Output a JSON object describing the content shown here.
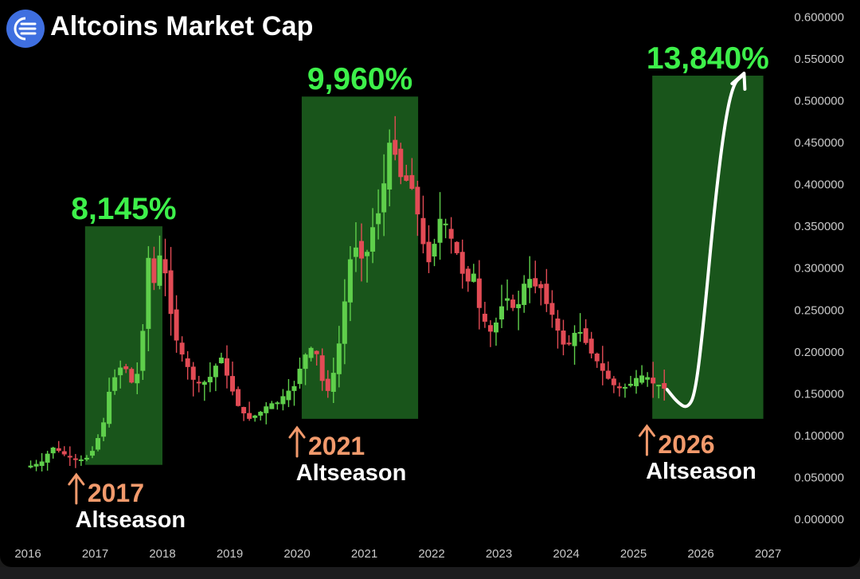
{
  "header": {
    "title": "Altcoins Market Cap",
    "logo_icon": "blue-circle-logo-icon"
  },
  "colors": {
    "background": "#000000",
    "up": "#5fcf4b",
    "down": "#e24b55",
    "highlight": "#1a5a1c",
    "percent_text": "#3df04a",
    "year_text": "#f29a6c",
    "projection": "#ffffff"
  },
  "chart_data": {
    "type": "candlestick",
    "title": "Altcoins Market Cap",
    "x_ticks": [
      "2016",
      "2017",
      "2018",
      "2019",
      "2020",
      "2021",
      "2022",
      "2023",
      "2024",
      "2025",
      "2026",
      "2027"
    ],
    "y_ticks": [
      "0.000000",
      "0.050000",
      "0.100000",
      "0.150000",
      "0.200000",
      "0.250000",
      "0.300000",
      "0.350000",
      "0.400000",
      "0.450000",
      "0.500000",
      "0.550000",
      "0.600000"
    ],
    "xlim": [
      2016.0,
      2027.0
    ],
    "ylim": [
      0.0,
      0.6
    ],
    "series_path": [
      [
        2016.0,
        0.062
      ],
      [
        2016.08,
        0.064
      ],
      [
        2016.2,
        0.066
      ],
      [
        2016.3,
        0.07
      ],
      [
        2016.37,
        0.087
      ],
      [
        2016.42,
        0.086
      ],
      [
        2016.5,
        0.081
      ],
      [
        2016.6,
        0.077
      ],
      [
        2016.7,
        0.073
      ],
      [
        2016.8,
        0.07
      ],
      [
        2016.9,
        0.072
      ],
      [
        2017.0,
        0.083
      ],
      [
        2017.1,
        0.1
      ],
      [
        2017.18,
        0.12
      ],
      [
        2017.26,
        0.155
      ],
      [
        2017.35,
        0.175
      ],
      [
        2017.45,
        0.185
      ],
      [
        2017.55,
        0.175
      ],
      [
        2017.62,
        0.15
      ],
      [
        2017.7,
        0.19
      ],
      [
        2017.78,
        0.25
      ],
      [
        2017.84,
        0.32
      ],
      [
        2017.9,
        0.275
      ],
      [
        2017.96,
        0.3
      ],
      [
        2018.02,
        0.32
      ],
      [
        2018.1,
        0.285
      ],
      [
        2018.2,
        0.23
      ],
      [
        2018.3,
        0.2
      ],
      [
        2018.42,
        0.18
      ],
      [
        2018.55,
        0.16
      ],
      [
        2018.7,
        0.165
      ],
      [
        2018.8,
        0.175
      ],
      [
        2018.9,
        0.2
      ],
      [
        2019.0,
        0.17
      ],
      [
        2019.1,
        0.15
      ],
      [
        2019.2,
        0.13
      ],
      [
        2019.3,
        0.12
      ],
      [
        2019.45,
        0.125
      ],
      [
        2019.6,
        0.135
      ],
      [
        2019.75,
        0.14
      ],
      [
        2019.9,
        0.15
      ],
      [
        2020.0,
        0.16
      ],
      [
        2020.1,
        0.185
      ],
      [
        2020.22,
        0.205
      ],
      [
        2020.35,
        0.195
      ],
      [
        2020.45,
        0.15
      ],
      [
        2020.55,
        0.16
      ],
      [
        2020.65,
        0.2
      ],
      [
        2020.75,
        0.26
      ],
      [
        2020.85,
        0.32
      ],
      [
        2020.95,
        0.33
      ],
      [
        2021.05,
        0.3
      ],
      [
        2021.12,
        0.34
      ],
      [
        2021.22,
        0.36
      ],
      [
        2021.3,
        0.38
      ],
      [
        2021.38,
        0.43
      ],
      [
        2021.45,
        0.46
      ],
      [
        2021.55,
        0.42
      ],
      [
        2021.62,
        0.4
      ],
      [
        2021.72,
        0.41
      ],
      [
        2021.8,
        0.38
      ],
      [
        2021.9,
        0.33
      ],
      [
        2022.0,
        0.31
      ],
      [
        2022.08,
        0.33
      ],
      [
        2022.15,
        0.36
      ],
      [
        2022.25,
        0.35
      ],
      [
        2022.35,
        0.33
      ],
      [
        2022.45,
        0.31
      ],
      [
        2022.55,
        0.28
      ],
      [
        2022.65,
        0.3
      ],
      [
        2022.75,
        0.25
      ],
      [
        2022.85,
        0.23
      ],
      [
        2022.95,
        0.22
      ],
      [
        2023.05,
        0.25
      ],
      [
        2023.15,
        0.27
      ],
      [
        2023.25,
        0.25
      ],
      [
        2023.35,
        0.26
      ],
      [
        2023.45,
        0.29
      ],
      [
        2023.55,
        0.28
      ],
      [
        2023.65,
        0.28
      ],
      [
        2023.75,
        0.26
      ],
      [
        2023.85,
        0.24
      ],
      [
        2023.95,
        0.215
      ],
      [
        2024.05,
        0.205
      ],
      [
        2024.15,
        0.22
      ],
      [
        2024.25,
        0.225
      ],
      [
        2024.35,
        0.21
      ],
      [
        2024.45,
        0.195
      ],
      [
        2024.55,
        0.18
      ],
      [
        2024.65,
        0.17
      ],
      [
        2024.75,
        0.16
      ],
      [
        2024.85,
        0.155
      ],
      [
        2024.95,
        0.16
      ],
      [
        2025.05,
        0.165
      ],
      [
        2025.15,
        0.17
      ],
      [
        2025.25,
        0.168
      ],
      [
        2025.35,
        0.162
      ],
      [
        2025.45,
        0.158
      ]
    ],
    "highlight_zones": [
      {
        "start": 2016.85,
        "end": 2018.0,
        "top": 0.35,
        "bottom": 0.065,
        "label": "8,145%"
      },
      {
        "start": 2020.07,
        "end": 2021.8,
        "top": 0.505,
        "bottom": 0.12,
        "label": "9,960%"
      },
      {
        "start": 2025.28,
        "end": 2026.93,
        "top": 0.53,
        "bottom": 0.12,
        "label": "13,840%"
      }
    ],
    "annotations": [
      {
        "x": 2016.72,
        "year": "2017",
        "label": "Altseason"
      },
      {
        "x": 2020.0,
        "year": "2021",
        "label": "Altseason"
      },
      {
        "x": 2025.2,
        "year": "2026",
        "label": "Altseason"
      }
    ],
    "projection_path": [
      [
        2025.5,
        0.155
      ],
      [
        2025.65,
        0.14
      ],
      [
        2025.8,
        0.132
      ],
      [
        2025.92,
        0.15
      ],
      [
        2026.05,
        0.24
      ],
      [
        2026.2,
        0.37
      ],
      [
        2026.35,
        0.47
      ],
      [
        2026.48,
        0.52
      ],
      [
        2026.62,
        0.53
      ]
    ]
  }
}
